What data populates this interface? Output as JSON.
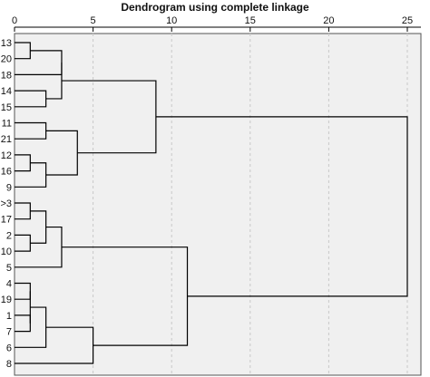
{
  "chart_data": {
    "type": "dendrogram",
    "title": "Dendrogram using complete linkage",
    "xlim": [
      0,
      25
    ],
    "x_ticks": [
      0,
      5,
      10,
      15,
      20,
      25
    ],
    "grid": true,
    "plot_background": "#f0f0f0",
    "line_color": "#000000",
    "leaf_labels": [
      "13",
      "20",
      "18",
      "14",
      "15",
      "11",
      "21",
      "12",
      "16",
      "9",
      ">3",
      "17",
      "2",
      "10",
      "5",
      "4",
      "19",
      "1",
      "7",
      "6",
      "8"
    ],
    "merges": [
      {
        "a": "13",
        "b": "20",
        "height": 1
      },
      {
        "a": "14",
        "b": "15",
        "height": 2
      },
      {
        "a": "13+20",
        "b": "18",
        "height": 3
      },
      {
        "a": "13+20+18",
        "b": "14+15",
        "height": 3
      },
      {
        "a": "12",
        "b": "16",
        "height": 1
      },
      {
        "a": "12+16",
        "b": "9",
        "height": 2
      },
      {
        "a": "11",
        "b": "21",
        "height": 2
      },
      {
        "a": "11+21",
        "b": "12+16+9",
        "height": 4
      },
      {
        "a": "cluster(13..15)",
        "b": "cluster(11..9)",
        "height": 9
      },
      {
        "a": ">3",
        "b": "17",
        "height": 1
      },
      {
        "a": "2",
        "b": "10",
        "height": 1
      },
      {
        "a": ">3+17",
        "b": "2+10",
        "height": 2
      },
      {
        "a": ">3+17+2+10",
        "b": "5",
        "height": 3
      },
      {
        "a": "4",
        "b": "19",
        "height": 1
      },
      {
        "a": "1",
        "b": "7",
        "height": 1
      },
      {
        "a": "4+19",
        "b": "1+7",
        "height": 1
      },
      {
        "a": "4+19+1+7",
        "b": "6",
        "height": 2
      },
      {
        "a": "4+19+1+7+6",
        "b": "8",
        "height": 5
      },
      {
        "a": "cluster(>3..5)",
        "b": "cluster(4..8)",
        "height": 11
      },
      {
        "a": "cluster(13..9)",
        "b": "cluster(>3..8)",
        "height": 25
      }
    ]
  }
}
